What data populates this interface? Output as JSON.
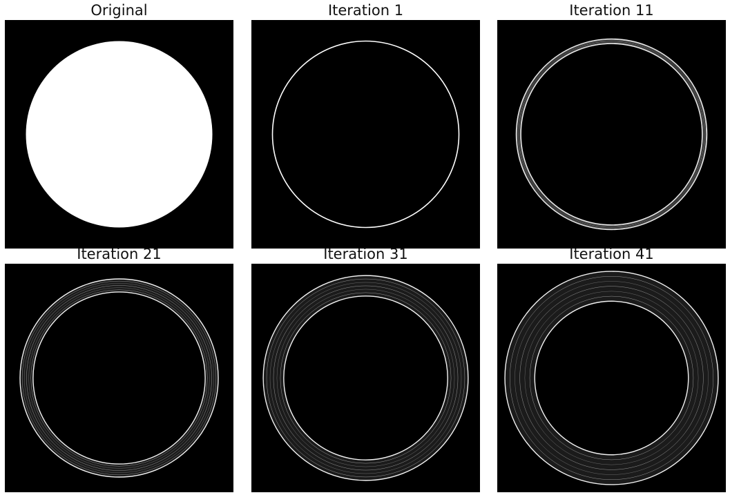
{
  "figure": {
    "panels": [
      {
        "title": "Original",
        "kind": "disk"
      },
      {
        "title": "Iteration 1",
        "kind": "outline"
      },
      {
        "title": "Iteration 11",
        "kind": "ring",
        "band": 0.05
      },
      {
        "title": "Iteration 21",
        "kind": "ring",
        "band": 0.14
      },
      {
        "title": "Iteration 31",
        "kind": "ring",
        "band": 0.22
      },
      {
        "title": "Iteration 41",
        "kind": "ring",
        "band": 0.32
      }
    ],
    "colors": {
      "background": "#000000",
      "foreground": "#ffffff",
      "band_fill": "#1b1b1b",
      "page": "#ffffff"
    }
  }
}
